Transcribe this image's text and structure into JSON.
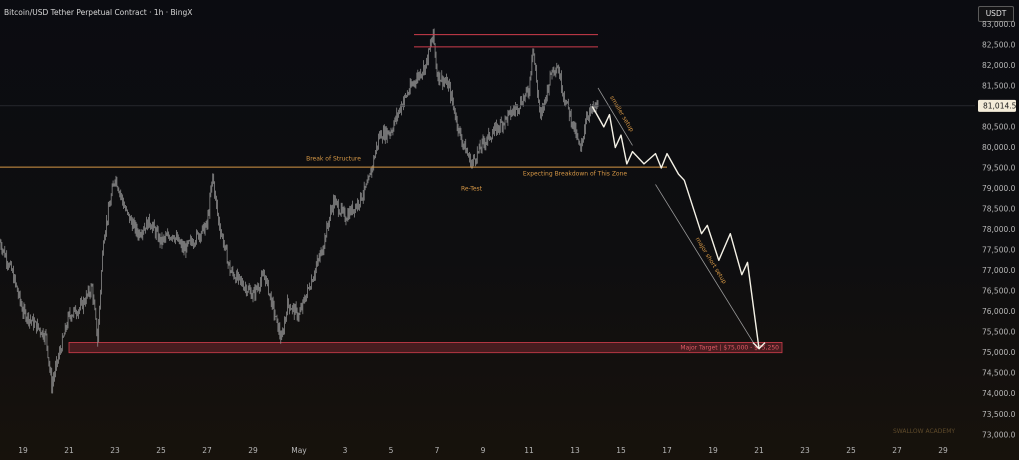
{
  "header": {
    "title": "Bitcoin/USD Tether Perpetual Contract · 1h · BingX",
    "currency": "USDT"
  },
  "watermark": "SWALLOW ACADEMY",
  "chart_data": {
    "type": "candlestick",
    "title": "Bitcoin/USD Tether Perpetual Contract · 1h · BingX",
    "xlabel": "",
    "ylabel": "",
    "ylim": [
      72800,
      83300
    ],
    "y_ticks": [
      73000,
      73500,
      74000,
      74500,
      75000,
      75500,
      76000,
      76500,
      77000,
      77500,
      78000,
      78500,
      79000,
      79500,
      80000,
      80500,
      81000,
      81500,
      82000,
      82500,
      83000
    ],
    "y_tick_labels": [
      "73,000.0",
      "73,500.0",
      "74,000.0",
      "74,500.0",
      "75,000.0",
      "75,500.0",
      "76,000.0",
      "76,500.0",
      "77,000.0",
      "77,500.0",
      "78,000.0",
      "78,500.0",
      "79,000.0",
      "79,500.0",
      "80,000.0",
      "80,500.0",
      "81,000.0",
      "81,500.0",
      "82,000.0",
      "82,500.0",
      "83,000.0"
    ],
    "x_axis": {
      "range": [
        "2024-04-18",
        "2024-05-30"
      ],
      "ticks": [
        {
          "date": "2024-04-19",
          "label": "19"
        },
        {
          "date": "2024-04-21",
          "label": "21"
        },
        {
          "date": "2024-04-23",
          "label": "23"
        },
        {
          "date": "2024-04-25",
          "label": "25"
        },
        {
          "date": "2024-04-27",
          "label": "27"
        },
        {
          "date": "2024-04-29",
          "label": "29"
        },
        {
          "date": "2024-05-01",
          "label": "May"
        },
        {
          "date": "2024-05-03",
          "label": "3"
        },
        {
          "date": "2024-05-05",
          "label": "5"
        },
        {
          "date": "2024-05-07",
          "label": "7"
        },
        {
          "date": "2024-05-09",
          "label": "9"
        },
        {
          "date": "2024-05-11",
          "label": "11"
        },
        {
          "date": "2024-05-13",
          "label": "13"
        },
        {
          "date": "2024-05-15",
          "label": "15"
        },
        {
          "date": "2024-05-17",
          "label": "17"
        },
        {
          "date": "2024-05-19",
          "label": "19"
        },
        {
          "date": "2024-05-21",
          "label": "21"
        },
        {
          "date": "2024-05-23",
          "label": "23"
        },
        {
          "date": "2024-05-25",
          "label": "25"
        },
        {
          "date": "2024-05-27",
          "label": "27"
        },
        {
          "date": "2024-05-29",
          "label": "29"
        }
      ]
    },
    "last_price": {
      "value": 81014.5,
      "label": "81,014.5"
    },
    "price_path": [
      [
        "2024-04-18 00:00",
        77700
      ],
      [
        "2024-04-18 12:00",
        77000
      ],
      [
        "2024-04-19 00:00",
        76000
      ],
      [
        "2024-04-19 12:00",
        75700
      ],
      [
        "2024-04-20 00:00",
        75400
      ],
      [
        "2024-04-20 06:00",
        74200
      ],
      [
        "2024-04-20 12:00",
        74800
      ],
      [
        "2024-04-21 00:00",
        75900
      ],
      [
        "2024-04-21 12:00",
        76100
      ],
      [
        "2024-04-22 00:00",
        76600
      ],
      [
        "2024-04-22 06:00",
        75300
      ],
      [
        "2024-04-22 12:00",
        77800
      ],
      [
        "2024-04-23 00:00",
        79300
      ],
      [
        "2024-04-23 12:00",
        78400
      ],
      [
        "2024-04-24 00:00",
        77900
      ],
      [
        "2024-04-24 12:00",
        78200
      ],
      [
        "2024-04-25 00:00",
        77700
      ],
      [
        "2024-04-25 12:00",
        77900
      ],
      [
        "2024-04-26 00:00",
        77500
      ],
      [
        "2024-04-26 12:00",
        77800
      ],
      [
        "2024-04-27 00:00",
        78100
      ],
      [
        "2024-04-27 06:00",
        79300
      ],
      [
        "2024-04-27 12:00",
        78200
      ],
      [
        "2024-04-28 00:00",
        77000
      ],
      [
        "2024-04-28 12:00",
        76700
      ],
      [
        "2024-04-29 00:00",
        76400
      ],
      [
        "2024-04-29 12:00",
        76900
      ],
      [
        "2024-04-30 00:00",
        75800
      ],
      [
        "2024-04-30 06:00",
        75300
      ],
      [
        "2024-04-30 12:00",
        76200
      ],
      [
        "2024-05-01 00:00",
        75900
      ],
      [
        "2024-05-01 12:00",
        76700
      ],
      [
        "2024-05-02 00:00",
        77500
      ],
      [
        "2024-05-02 12:00",
        78700
      ],
      [
        "2024-05-03 00:00",
        78300
      ],
      [
        "2024-05-03 12:00",
        78600
      ],
      [
        "2024-05-04 00:00",
        79100
      ],
      [
        "2024-05-04 12:00",
        80300
      ],
      [
        "2024-05-05 00:00",
        80400
      ],
      [
        "2024-05-05 12:00",
        81100
      ],
      [
        "2024-05-06 00:00",
        81600
      ],
      [
        "2024-05-06 12:00",
        82000
      ],
      [
        "2024-05-06 20:00",
        82750
      ],
      [
        "2024-05-07 00:00",
        81800
      ],
      [
        "2024-05-07 12:00",
        81500
      ],
      [
        "2024-05-08 00:00",
        80300
      ],
      [
        "2024-05-08 12:00",
        79600
      ],
      [
        "2024-05-09 00:00",
        80100
      ],
      [
        "2024-05-09 12:00",
        80400
      ],
      [
        "2024-05-10 00:00",
        80700
      ],
      [
        "2024-05-10 12:00",
        81000
      ],
      [
        "2024-05-11 00:00",
        81400
      ],
      [
        "2024-05-11 04:00",
        82500
      ],
      [
        "2024-05-11 12:00",
        80700
      ],
      [
        "2024-05-12 00:00",
        81900
      ],
      [
        "2024-05-12 06:00",
        82000
      ],
      [
        "2024-05-12 12:00",
        81300
      ],
      [
        "2024-05-13 00:00",
        80400
      ],
      [
        "2024-05-13 06:00",
        79900
      ],
      [
        "2024-05-13 12:00",
        80800
      ],
      [
        "2024-05-14 00:00",
        81014.5
      ]
    ],
    "levels": [
      {
        "name": "Break of Structure",
        "value": 79520,
        "from": "2024-04-18",
        "to": "2024-05-17",
        "color": "#d59745"
      },
      {
        "value": 82750,
        "from": "2024-05-06",
        "to": "2024-05-14",
        "color": "#cf3d4c"
      },
      {
        "value": 82450,
        "from": "2024-05-06",
        "to": "2024-05-14",
        "color": "#cf3d4c"
      }
    ],
    "target_zone": {
      "label": "Major Target | $75,000 - $75,250",
      "low": 75000,
      "high": 75250,
      "from": "2024-04-21",
      "to": "2024-05-22",
      "color": "#cf3d4c"
    },
    "projection": [
      [
        "2024-05-13 18:00",
        81000
      ],
      [
        "2024-05-14 06:00",
        80500
      ],
      [
        "2024-05-14 12:00",
        80800
      ],
      [
        "2024-05-14 18:00",
        80000
      ],
      [
        "2024-05-15 00:00",
        80300
      ],
      [
        "2024-05-15 06:00",
        79600
      ],
      [
        "2024-05-15 12:00",
        79900
      ],
      [
        "2024-05-16 00:00",
        79600
      ],
      [
        "2024-05-16 12:00",
        79850
      ],
      [
        "2024-05-16 18:00",
        79500
      ],
      [
        "2024-05-17 00:00",
        79850
      ],
      [
        "2024-05-17 12:00",
        79350
      ],
      [
        "2024-05-17 18:00",
        79200
      ],
      [
        "2024-05-18 12:00",
        77900
      ],
      [
        "2024-05-18 18:00",
        78100
      ],
      [
        "2024-05-19 06:00",
        77250
      ],
      [
        "2024-05-19 18:00",
        77900
      ],
      [
        "2024-05-20 06:00",
        76900
      ],
      [
        "2024-05-20 12:00",
        77200
      ],
      [
        "2024-05-21 00:00",
        75100
      ]
    ],
    "trend_lines": [
      {
        "label": "smaller setup",
        "from": [
          "2024-05-14 00:00",
          81450
        ],
        "to": [
          "2024-05-15 12:00",
          80050
        ]
      },
      {
        "label": "major short setup",
        "from": [
          "2024-05-16 12:00",
          79100
        ],
        "to": [
          "2024-05-20 18:00",
          75250
        ]
      }
    ],
    "annotations": [
      {
        "text": "Break of Structure",
        "date": "2024-05-02 12:00",
        "value": 79680,
        "color": "#d59745"
      },
      {
        "text": "Re-Test",
        "date": "2024-05-08 12:00",
        "value": 78950,
        "color": "#d59745"
      },
      {
        "text": "Expecting Breakdown of This Zone",
        "date": "2024-05-13 00:00",
        "value": 79320,
        "color": "#d59745"
      }
    ]
  }
}
